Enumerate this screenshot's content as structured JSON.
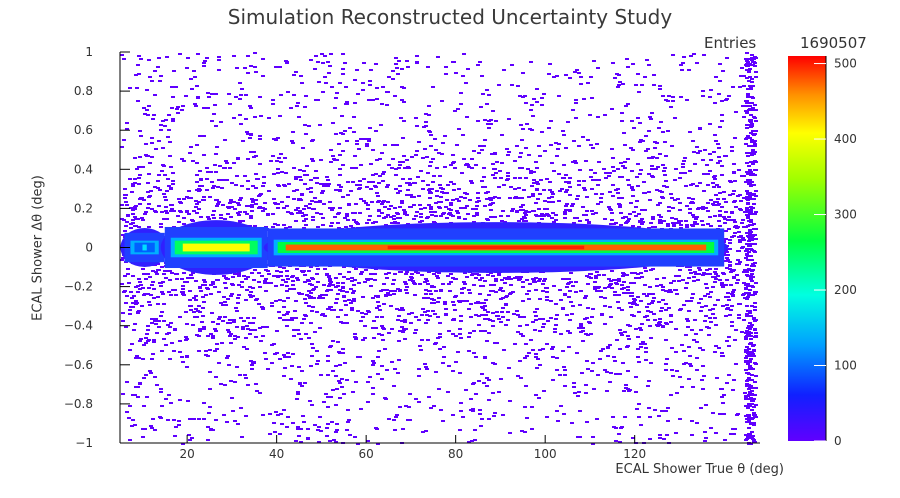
{
  "chart_data": {
    "type": "heatmap",
    "title": "Simulation Reconstructed Uncertainty Study",
    "xlabel": "ECAL Shower True θ (deg)",
    "ylabel": "ECAL Shower Δθ (deg)",
    "xlim": [
      5,
      148
    ],
    "ylim": [
      -1,
      1
    ],
    "x_ticks": [
      20,
      40,
      60,
      80,
      100,
      120
    ],
    "x_tick_labels": [
      "20",
      "40",
      "60",
      "80",
      "100",
      "120"
    ],
    "y_ticks": [
      -1,
      -0.8,
      -0.6,
      -0.4,
      -0.2,
      0,
      0.2,
      0.4,
      0.6,
      0.8,
      1
    ],
    "y_tick_labels": [
      "−1",
      "−0.8",
      "−0.6",
      "−0.4",
      "−0.2",
      "0",
      "0.2",
      "0.4",
      "0.6",
      "0.8",
      "1"
    ],
    "stats": {
      "entries_label": "Entries",
      "entries_value": "1690507"
    },
    "colorbar": {
      "zlim": [
        0,
        510
      ],
      "ticks": [
        0,
        100,
        200,
        300,
        400,
        500
      ],
      "tick_labels": [
        "0",
        "100",
        "200",
        "300",
        "400",
        "500"
      ]
    },
    "bands": [
      {
        "x": [
          6,
          15
        ],
        "peak_counts": 60,
        "core_halfwidth": 0.015,
        "mid_halfwidth": 0.035,
        "outer_halfwidth": 0.1
      },
      {
        "x": [
          15,
          38
        ],
        "peak_counts": 230,
        "core_halfwidth": 0.02,
        "mid_halfwidth": 0.05,
        "outer_halfwidth": 0.14
      },
      {
        "x": [
          38,
          140
        ],
        "peak_counts": 470,
        "core_halfwidth": 0.015,
        "mid_halfwidth": 0.04,
        "outer_halfwidth": 0.13
      }
    ],
    "grid": false
  }
}
